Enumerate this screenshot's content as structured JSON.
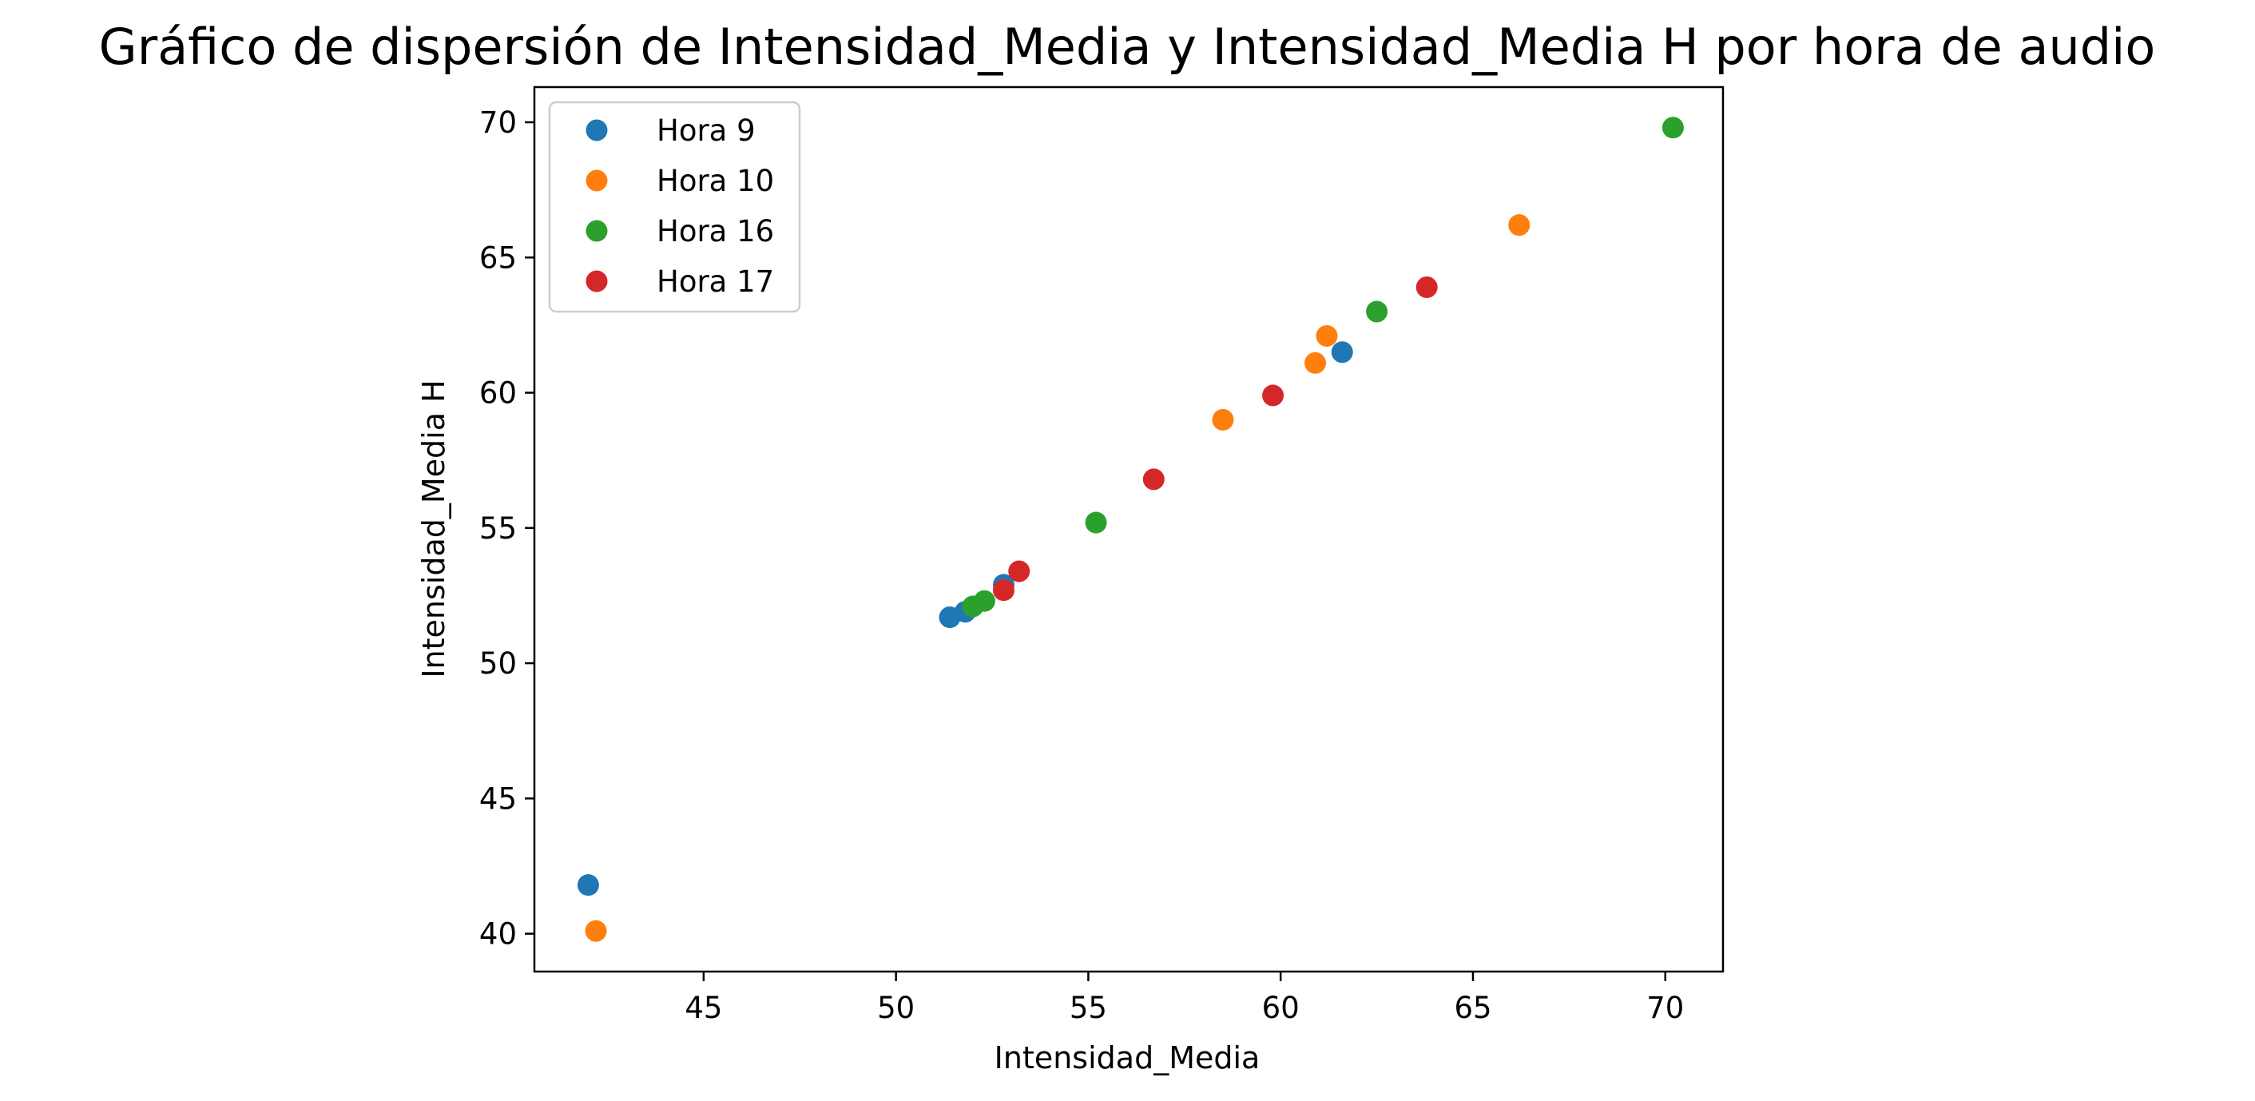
{
  "chart_data": {
    "type": "scatter",
    "title": "Gráfico de dispersión de Intensidad_Media y Intensidad_Media H por hora de audio",
    "xlabel": "Intensidad_Media",
    "ylabel": "Intensidad_Media H",
    "xlim": [
      40.6,
      71.5
    ],
    "ylim": [
      38.6,
      71.3
    ],
    "xticks": [
      45,
      50,
      55,
      60,
      65,
      70
    ],
    "yticks": [
      40,
      45,
      50,
      55,
      60,
      65,
      70
    ],
    "grid": false,
    "legend_position": "top-left",
    "series": [
      {
        "name": "Hora 9",
        "color": "#1f77b4",
        "points": [
          [
            42.0,
            41.8
          ],
          [
            51.4,
            51.7
          ],
          [
            51.8,
            51.9
          ],
          [
            52.8,
            52.9
          ],
          [
            61.6,
            61.5
          ]
        ]
      },
      {
        "name": "Hora 10",
        "color": "#ff7f0e",
        "points": [
          [
            42.2,
            40.1
          ],
          [
            58.5,
            59.0
          ],
          [
            60.9,
            61.1
          ],
          [
            61.2,
            62.1
          ],
          [
            66.2,
            66.2
          ]
        ]
      },
      {
        "name": "Hora 16",
        "color": "#2ca02c",
        "points": [
          [
            52.0,
            52.1
          ],
          [
            52.3,
            52.3
          ],
          [
            55.2,
            55.2
          ],
          [
            62.5,
            63.0
          ],
          [
            70.2,
            69.8
          ]
        ]
      },
      {
        "name": "Hora 17",
        "color": "#d62728",
        "points": [
          [
            52.8,
            52.7
          ],
          [
            53.2,
            53.4
          ],
          [
            56.7,
            56.8
          ],
          [
            59.8,
            59.9
          ],
          [
            63.8,
            63.9
          ]
        ]
      }
    ]
  }
}
